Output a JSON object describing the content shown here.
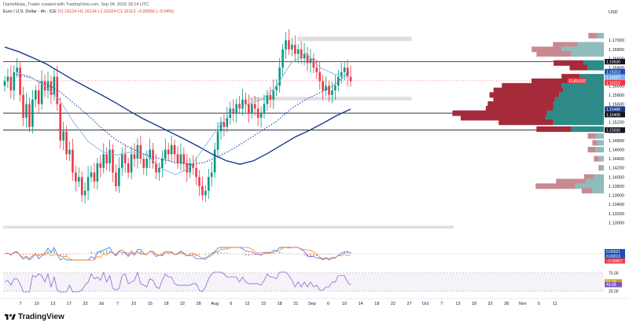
{
  "header": {
    "text": "DanteMejia_Trader created with TradingView.com, Sep 04, 2026 18:14 UTC"
  },
  "symbol": {
    "name": "Euro / U.S. Dollar · 4h · ICE",
    "ohlc": "O1.16124 H1.16134 L1.16104 C1.16113 −0.00050 (−0.04%)"
  },
  "currency": "USD",
  "brand": "TradingView",
  "colors": {
    "up": "#089981",
    "down": "#f23645",
    "ma_long": "#1a3a8c",
    "ma_dotted": "#1e4fb5",
    "ma_fast": "#7fb3e8",
    "vp_up": "#2e8b87",
    "vp_down": "#a52a3a",
    "vp_up_light": "#8fbcbc",
    "vp_down_light": "#c88a92",
    "zone": "#d9d9d9"
  },
  "chart_data": {
    "type": "candlestick",
    "title": "",
    "ylim": [
      1.128,
      1.174
    ],
    "y_ticks": [
      "1.17000",
      "1.16800",
      "1.16600",
      "1.16400",
      "1.16200",
      "1.16000",
      "1.15800",
      "1.15600",
      "1.15400",
      "1.15200",
      "1.15000",
      "1.14800",
      "1.14600",
      "1.14400",
      "1.14200",
      "1.14000",
      "1.13800",
      "1.13600",
      "1.13400",
      "1.13200",
      "1.13000"
    ],
    "x_ticks": [
      "7",
      "10",
      "13",
      "17",
      "23",
      "Jul",
      "7",
      "10",
      "15",
      "18",
      "22",
      "28",
      "Aug",
      "6",
      "12",
      "15",
      "18",
      "21",
      "Sep",
      "6",
      "10",
      "14",
      "18",
      "22",
      "27",
      "Oct",
      "7",
      "13",
      "18",
      "22",
      "28",
      "Nov",
      "5",
      "11"
    ],
    "price_labels": [
      {
        "label": "1.16530",
        "value": 1.1653,
        "color": "#131722"
      },
      {
        "label": "1.16313",
        "value": 1.1631,
        "color": "#1e4fb5"
      },
      {
        "label": "1.16207",
        "value": 1.1621,
        "color": "#7fb3e8"
      },
      {
        "label": "EURUSD",
        "value": 1.1611,
        "color": "#f23645"
      },
      {
        "label": "1.16113",
        "value": 1.1611,
        "color": "#f23645"
      },
      {
        "label": "1.15488",
        "value": 1.1549,
        "color": "#1a3a8c"
      },
      {
        "label": "1.15405",
        "value": 1.154,
        "color": "#131722"
      },
      {
        "label": "1.15030",
        "value": 1.1503,
        "color": "#131722"
      }
    ],
    "horizontal_levels": [
      1.1653,
      1.154,
      1.1503
    ],
    "zones": [
      {
        "from": 1.1698,
        "to": 1.1708,
        "x_start": 0.49,
        "x_end": 0.68
      },
      {
        "from": 1.1568,
        "to": 1.1576,
        "x_start": 0.41,
        "x_end": 0.68
      },
      {
        "from": 1.1287,
        "to": 1.1293,
        "x_start": 0.0,
        "x_end": 0.75
      }
    ],
    "candles_close": [
      1.161,
      1.162,
      1.159,
      1.163,
      1.164,
      1.158,
      1.153,
      1.156,
      1.151,
      1.157,
      1.159,
      1.156,
      1.161,
      1.159,
      1.161,
      1.158,
      1.162,
      1.156,
      1.148,
      1.15,
      1.145,
      1.146,
      1.141,
      1.139,
      1.14,
      1.136,
      1.137,
      1.14,
      1.141,
      1.139,
      1.143,
      1.142,
      1.145,
      1.143,
      1.146,
      1.141,
      1.138,
      1.142,
      1.145,
      1.143,
      1.141,
      1.145,
      1.144,
      1.147,
      1.144,
      1.142,
      1.144,
      1.146,
      1.143,
      1.141,
      1.142,
      1.144,
      1.146,
      1.145,
      1.147,
      1.145,
      1.143,
      1.145,
      1.143,
      1.141,
      1.143,
      1.142,
      1.14,
      1.138,
      1.136,
      1.137,
      1.14,
      1.141,
      1.146,
      1.15,
      1.152,
      1.151,
      1.153,
      1.155,
      1.154,
      1.156,
      1.155,
      1.157,
      1.156,
      1.154,
      1.156,
      1.155,
      1.153,
      1.154,
      1.156,
      1.158,
      1.157,
      1.159,
      1.16,
      1.164,
      1.168,
      1.17,
      1.168,
      1.169,
      1.167,
      1.168,
      1.166,
      1.167,
      1.165,
      1.166,
      1.164,
      1.163,
      1.161,
      1.159,
      1.16,
      1.158,
      1.159,
      1.16,
      1.162,
      1.163,
      1.164,
      1.162,
      1.161
    ],
    "series": [
      {
        "name": "MA long",
        "type": "solid",
        "values": [
          1.1685,
          1.1675,
          1.1662,
          1.1648,
          1.163,
          1.1612,
          1.1596,
          1.158,
          1.1563,
          1.1545,
          1.1528,
          1.1513,
          1.1498,
          1.1483,
          1.1467,
          1.145,
          1.1436,
          1.1428,
          1.1436,
          1.1452,
          1.147,
          1.1488,
          1.1502,
          1.1518,
          1.1535,
          1.1549
        ]
      },
      {
        "name": "MA dotted",
        "type": "dotted",
        "values": [
          1.1625,
          1.1618,
          1.1605,
          1.1588,
          1.1562,
          1.1535,
          1.1505,
          1.148,
          1.1462,
          1.1448,
          1.144,
          1.1432,
          1.1428,
          1.1432,
          1.1445,
          1.1462,
          1.1482,
          1.1502,
          1.1522,
          1.155,
          1.157,
          1.1585,
          1.1602,
          1.1631
        ]
      },
      {
        "name": "MA fast",
        "type": "solid",
        "values": [
          1.163,
          1.162,
          1.16,
          1.157,
          1.152,
          1.1478,
          1.1455,
          1.1448,
          1.1455,
          1.145,
          1.142,
          1.1405,
          1.142,
          1.1465,
          1.151,
          1.1545,
          1.156,
          1.157,
          1.16,
          1.165,
          1.1672,
          1.164,
          1.1625,
          1.1621
        ]
      }
    ],
    "volume_profile": [
      {
        "price": 1.171,
        "up": 0.08,
        "down": 0.09
      },
      {
        "price": 1.169,
        "up": 0.32,
        "down": 0.25
      },
      {
        "price": 1.168,
        "up": 0.52,
        "down": 0.3
      },
      {
        "price": 1.167,
        "up": 0.4,
        "down": 0.35
      },
      {
        "price": 1.165,
        "up": 0.25,
        "down": 0.3
      },
      {
        "price": 1.164,
        "up": 0.2,
        "down": 0.18
      },
      {
        "price": 1.162,
        "up": 0.3,
        "down": 0.18
      },
      {
        "price": 1.161,
        "up": 0.4,
        "down": 0.4
      },
      {
        "price": 1.16,
        "up": 0.52,
        "down": 0.6
      },
      {
        "price": 1.159,
        "up": 0.5,
        "down": 0.7
      },
      {
        "price": 1.158,
        "up": 0.55,
        "down": 0.7
      },
      {
        "price": 1.157,
        "up": 0.6,
        "down": 0.62
      },
      {
        "price": 1.156,
        "up": 0.62,
        "down": 0.66
      },
      {
        "price": 1.155,
        "up": 0.62,
        "down": 0.68
      },
      {
        "price": 1.154,
        "up": 0.7,
        "down": 0.95
      },
      {
        "price": 1.153,
        "up": 0.72,
        "down": 0.85
      },
      {
        "price": 1.152,
        "up": 0.62,
        "down": 0.55
      },
      {
        "price": 1.1505,
        "up": 0.4,
        "down": 0.35
      },
      {
        "price": 1.149,
        "up": 0.1,
        "down": 0.08
      },
      {
        "price": 1.1475,
        "up": 0.08,
        "down": 0.05
      },
      {
        "price": 1.146,
        "up": 0.1,
        "down": 0.08
      },
      {
        "price": 1.144,
        "up": 0.06,
        "down": 0.05
      },
      {
        "price": 1.142,
        "up": 0.04,
        "down": 0.02
      },
      {
        "price": 1.14,
        "up": 0.12,
        "down": 0.1
      },
      {
        "price": 1.139,
        "up": 0.22,
        "down": 0.3
      },
      {
        "price": 1.138,
        "up": 0.35,
        "down": 0.4
      },
      {
        "price": 1.137,
        "up": 0.15,
        "down": 0.1
      }
    ],
    "macd": {
      "labels": [
        "0.00021",
        "0.00013",
        "−0.00007"
      ],
      "colors": [
        "#1e4fb5",
        "#1e4fb5",
        "#f23645"
      ],
      "ylim": [
        -0.004,
        0.004
      ]
    },
    "rsi": {
      "labels": [
        "75.00",
        "51.24",
        "49.68",
        "25.00"
      ],
      "colors": [
        "#131722",
        "#d4a017",
        "#7b57c4",
        "#131722"
      ],
      "ylim": [
        15,
        85
      ]
    }
  }
}
